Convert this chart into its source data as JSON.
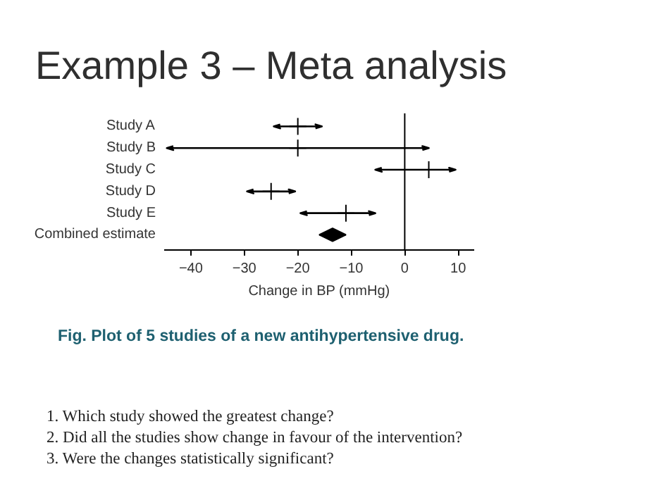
{
  "chart_data": {
    "type": "scatter",
    "title": "Example 3 – Meta analysis",
    "xlabel": "Change in BP (mmHg)",
    "orientation": "horizontal",
    "categories": [
      "Study A",
      "Study B",
      "Study C",
      "Study D",
      "Study E",
      "Combined estimate"
    ],
    "series": [
      {
        "color": "#000000",
        "marker": "cross",
        "values": [
          -20,
          -20,
          4.5,
          -25,
          -11,
          null
        ],
        "errors": [
          [
            -24.5,
            -15.5
          ],
          [
            -44.5,
            4.5
          ],
          [
            -5.5,
            9.5
          ],
          [
            -29.5,
            -20.5
          ],
          [
            -19.5,
            -5.5
          ],
          null
        ]
      },
      {
        "color": "#000000",
        "marker": "diamond",
        "values": [
          null,
          null,
          null,
          null,
          null,
          -13.5
        ],
        "errors": [
          null,
          null,
          null,
          null,
          null,
          [
            -16,
            -11
          ]
        ]
      }
    ],
    "xlim": [
      -45,
      13
    ],
    "xticks": [
      -40,
      -30,
      -20,
      -10,
      0,
      10
    ],
    "ref_lines": [
      {
        "axis": "x",
        "value": 0
      }
    ],
    "grid": false,
    "annotations": [
      "Fig. Plot of 5 studies of a new antihypertensive drug.",
      "1.  Which study showed the greatest change?",
      "2.  Did all the studies show change in favour of the intervention?",
      "3.  Were the changes statistically significant?"
    ]
  }
}
